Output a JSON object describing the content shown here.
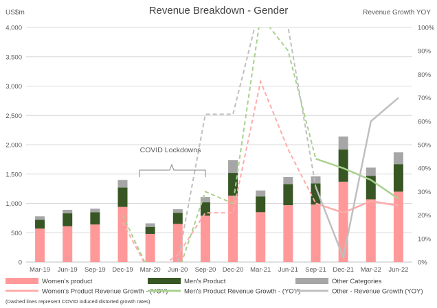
{
  "chart_data": {
    "type": "bar",
    "title": "Revenue Breakdown - Gender",
    "ylabel_left": "US$m",
    "ylabel_right": "Revenue Growth YOY",
    "ylim_left": [
      0,
      4000
    ],
    "ylim_right": [
      0,
      100
    ],
    "left_ticks": [
      "0",
      "500",
      "1,000",
      "1,500",
      "2,000",
      "2,500",
      "3,000",
      "3,500",
      "4,000"
    ],
    "right_ticks": [
      "0%",
      "10%",
      "20%",
      "30%",
      "40%",
      "50%",
      "60%",
      "70%",
      "80%",
      "90%",
      "100%"
    ],
    "categories": [
      "Mar-19",
      "Jun-19",
      "Sep-19",
      "Dec-19",
      "Mar-20",
      "Jun-20",
      "Sep-20",
      "Dec-20",
      "Mar-21",
      "Jun-21",
      "Sep-21",
      "Dec-21",
      "Mar-22",
      "Jun-22"
    ],
    "bar_series": [
      {
        "name": "Women's product",
        "color": "#ff9999",
        "values": [
          570,
          610,
          640,
          940,
          480,
          650,
          790,
          1130,
          850,
          970,
          980,
          1370,
          1070,
          1200
        ]
      },
      {
        "name": "Men's Product",
        "color": "#375623",
        "values": [
          150,
          220,
          210,
          330,
          120,
          190,
          230,
          390,
          270,
          360,
          360,
          550,
          400,
          470
        ]
      },
      {
        "name": "Other Categories",
        "color": "#a6a6a6",
        "values": [
          60,
          60,
          60,
          130,
          60,
          60,
          90,
          220,
          100,
          120,
          120,
          220,
          140,
          200
        ]
      }
    ],
    "line_series": [
      {
        "name": "Women's Product Revenue Growth - (YOY)",
        "color": "#ffaaaa",
        "solid": [
          null,
          null,
          null,
          null,
          null,
          null,
          null,
          null,
          null,
          null,
          25,
          21,
          26,
          24
        ],
        "dashed": [
          null,
          null,
          null,
          17,
          -5,
          3,
          21,
          21,
          77,
          48,
          25,
          null,
          null,
          null
        ]
      },
      {
        "name": "Men's Product Revenue Growth - (YOY)",
        "color": "#a9d18e",
        "solid": [
          null,
          null,
          null,
          null,
          null,
          null,
          null,
          null,
          null,
          null,
          44,
          40,
          35,
          27
        ],
        "dashed": [
          null,
          null,
          null,
          20,
          -5,
          -5,
          30,
          25,
          105,
          90,
          44,
          null,
          null,
          null
        ]
      },
      {
        "name": "Other - Revenue Growth (YOY)",
        "color": "#bfbfbf",
        "solid": [
          null,
          null,
          null,
          null,
          null,
          null,
          null,
          null,
          null,
          null,
          32,
          2,
          60,
          70
        ],
        "dashed": [
          null,
          null,
          null,
          null,
          null,
          0,
          63,
          63,
          110,
          100,
          32,
          null,
          null,
          null
        ]
      }
    ],
    "annotation": "COVID Lockdowns",
    "legend_position": "bottom",
    "note": "(Dashed lines represent COVID induced distorted growth rates)"
  }
}
